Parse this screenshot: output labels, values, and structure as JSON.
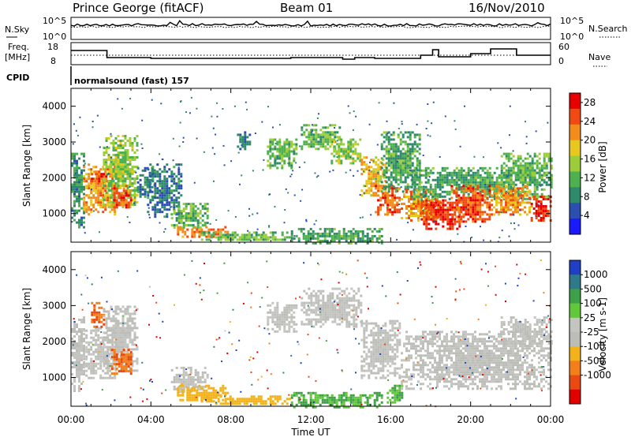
{
  "header": {
    "station": "Prince George (fitACF)",
    "beam": "Beam 01",
    "date": "16/Nov/2010"
  },
  "top_panels": {
    "nsky_label": "N.Sky",
    "nsky_ticks": [
      "10^5",
      "10^0"
    ],
    "nsearch_label": "N.Search",
    "nsearch_ticks": [
      "10^5",
      "10^0"
    ],
    "freq_label": "Freq.",
    "freq_unit": "[MHz]",
    "freq_ticks": [
      "18",
      "8"
    ],
    "nave_label": "Nave",
    "nave_ticks": [
      "60",
      "0"
    ],
    "cpid_label": "CPID",
    "cpid_value": "normalsound (fast) 157"
  },
  "colors": {
    "power_scale": [
      "#1a1aff",
      "#2a4fb0",
      "#2e8a6a",
      "#4fb04f",
      "#9bcc3a",
      "#e8c81e",
      "#f28c1a",
      "#f04a12",
      "#e80000"
    ],
    "velocity_scale": [
      "#1f3fc4",
      "#2f7a8a",
      "#3fa04a",
      "#62c83a",
      "#c4c4c0",
      "#bdbdb8",
      "#f2b21a",
      "#f27f1a",
      "#e84a12",
      "#e00000"
    ]
  },
  "chart_data": [
    {
      "type": "heatmap",
      "title": "",
      "xlabel": "",
      "ylabel": "Slant Range [km]",
      "xlim": [
        0,
        24
      ],
      "ylim": [
        200,
        4500
      ],
      "x_ticks": [
        "00:00",
        "04:00",
        "08:00",
        "12:00",
        "16:00",
        "20:00",
        "00:00"
      ],
      "y_ticks": [
        "1000",
        "2000",
        "3000",
        "4000"
      ],
      "colorbar_label": "Power [dB]",
      "colorbar_ticks": [
        "4",
        "8",
        "12",
        "16",
        "20",
        "24",
        "28"
      ],
      "colorbar_range": [
        0,
        30
      ],
      "regions": [
        {
          "t0": 0.0,
          "t1": 0.6,
          "r0": 600,
          "r1": 2700,
          "value": 8
        },
        {
          "t0": 0.6,
          "t1": 2.2,
          "r0": 1000,
          "r1": 2400,
          "value": 22
        },
        {
          "t0": 1.0,
          "t1": 1.8,
          "r0": 1900,
          "r1": 2200,
          "value": 26
        },
        {
          "t0": 1.6,
          "t1": 3.3,
          "r0": 1200,
          "r1": 3200,
          "value": 14
        },
        {
          "t0": 2.0,
          "t1": 3.0,
          "r0": 1100,
          "r1": 1800,
          "value": 26
        },
        {
          "t0": 3.3,
          "t1": 4.2,
          "r0": 1500,
          "r1": 2300,
          "value": 6
        },
        {
          "t0": 3.8,
          "t1": 5.5,
          "r0": 900,
          "r1": 2400,
          "value": 6
        },
        {
          "t0": 5.0,
          "t1": 6.8,
          "r0": 600,
          "r1": 1300,
          "value": 12
        },
        {
          "t0": 5.3,
          "t1": 7.8,
          "r0": 350,
          "r1": 650,
          "value": 24
        },
        {
          "t0": 6.5,
          "t1": 11.0,
          "r0": 250,
          "r1": 500,
          "value": 12
        },
        {
          "t0": 8.3,
          "t1": 9.0,
          "r0": 2800,
          "r1": 3300,
          "value": 6
        },
        {
          "t0": 9.8,
          "t1": 11.3,
          "r0": 2300,
          "r1": 3100,
          "value": 12
        },
        {
          "t0": 11.0,
          "t1": 15.5,
          "r0": 200,
          "r1": 600,
          "value": 10
        },
        {
          "t0": 11.5,
          "t1": 13.5,
          "r0": 2800,
          "r1": 3500,
          "value": 12
        },
        {
          "t0": 13.0,
          "t1": 14.5,
          "r0": 2400,
          "r1": 3100,
          "value": 14
        },
        {
          "t0": 14.5,
          "t1": 15.8,
          "r0": 1500,
          "r1": 2600,
          "value": 20
        },
        {
          "t0": 15.2,
          "t1": 16.5,
          "r0": 1000,
          "r1": 1800,
          "value": 26
        },
        {
          "t0": 15.5,
          "t1": 17.5,
          "r0": 1600,
          "r1": 3300,
          "value": 10
        },
        {
          "t0": 16.5,
          "t1": 18.5,
          "r0": 800,
          "r1": 1700,
          "value": 22
        },
        {
          "t0": 17.5,
          "t1": 19.5,
          "r0": 600,
          "r1": 1400,
          "value": 28
        },
        {
          "t0": 17.0,
          "t1": 24.0,
          "r0": 1400,
          "r1": 2300,
          "value": 10
        },
        {
          "t0": 19.0,
          "t1": 21.0,
          "r0": 800,
          "r1": 1800,
          "value": 26
        },
        {
          "t0": 21.0,
          "t1": 23.0,
          "r0": 1000,
          "r1": 1800,
          "value": 22
        },
        {
          "t0": 23.0,
          "t1": 24.0,
          "r0": 800,
          "r1": 1500,
          "value": 28
        },
        {
          "t0": 21.5,
          "t1": 24.0,
          "r0": 1900,
          "r1": 2700,
          "value": 12
        }
      ]
    },
    {
      "type": "heatmap",
      "title": "",
      "xlabel": "Time UT",
      "ylabel": "Slant Range [km]",
      "xlim": [
        0,
        24
      ],
      "ylim": [
        200,
        4500
      ],
      "x_ticks": [
        "00:00",
        "04:00",
        "08:00",
        "12:00",
        "16:00",
        "20:00",
        "00:00"
      ],
      "y_ticks": [
        "1000",
        "2000",
        "3000",
        "4000"
      ],
      "colorbar_label": "Velocity [m s-1]",
      "colorbar_ticks": [
        "1000",
        "500",
        "100",
        "25",
        "-25",
        "-100",
        "-500",
        "-1000"
      ],
      "colorbar_range": [
        -1200,
        1200
      ],
      "regions": [
        {
          "t0": 0.0,
          "t1": 0.6,
          "r0": 600,
          "r1": 2700,
          "value": 0
        },
        {
          "t0": 0.6,
          "t1": 2.2,
          "r0": 1000,
          "r1": 2400,
          "value": 0
        },
        {
          "t0": 1.0,
          "t1": 1.6,
          "r0": 2400,
          "r1": 3100,
          "value": -300
        },
        {
          "t0": 1.6,
          "t1": 3.3,
          "r0": 1200,
          "r1": 3000,
          "value": 0
        },
        {
          "t0": 2.0,
          "t1": 3.0,
          "r0": 1100,
          "r1": 1800,
          "value": -300
        },
        {
          "t0": 5.0,
          "t1": 6.8,
          "r0": 600,
          "r1": 1300,
          "value": 0
        },
        {
          "t0": 5.3,
          "t1": 7.8,
          "r0": 350,
          "r1": 800,
          "value": -60
        },
        {
          "t0": 6.5,
          "t1": 11.0,
          "r0": 250,
          "r1": 500,
          "value": -60
        },
        {
          "t0": 9.8,
          "t1": 11.3,
          "r0": 2300,
          "r1": 3100,
          "value": 0
        },
        {
          "t0": 11.0,
          "t1": 15.5,
          "r0": 200,
          "r1": 600,
          "value": 60
        },
        {
          "t0": 11.5,
          "t1": 14.5,
          "r0": 2400,
          "r1": 3500,
          "value": 0
        },
        {
          "t0": 14.5,
          "t1": 16.5,
          "r0": 1000,
          "r1": 2600,
          "value": 0
        },
        {
          "t0": 15.8,
          "t1": 16.6,
          "r0": 300,
          "r1": 800,
          "value": 60
        },
        {
          "t0": 16.5,
          "t1": 24.0,
          "r0": 700,
          "r1": 2300,
          "value": 0
        },
        {
          "t0": 21.5,
          "t1": 24.0,
          "r0": 1900,
          "r1": 2700,
          "value": 0
        }
      ]
    }
  ]
}
